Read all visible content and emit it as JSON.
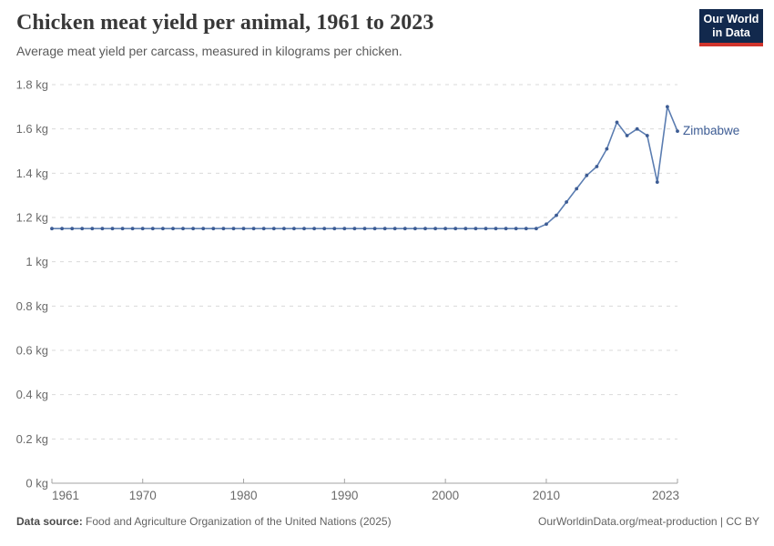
{
  "header": {
    "title": "Chicken meat yield per animal, 1961 to 2023",
    "subtitle": "Average meat yield per carcass, measured in kilograms per chicken."
  },
  "logo": {
    "line1": "Our World",
    "line2": "in Data",
    "bg_color": "#12294d",
    "bar_color": "#d0342c"
  },
  "chart_data": {
    "type": "line",
    "title": "Chicken meat yield per animal, 1961 to 2023",
    "xlabel": "",
    "ylabel": "kg",
    "ylim": [
      0,
      1.8
    ],
    "xlim": [
      1961,
      2023
    ],
    "grid": true,
    "grid_style": "dashed",
    "legend_position": "end-of-line-label",
    "y_ticks": [
      {
        "value": 1.8,
        "label": "1.8 kg"
      },
      {
        "value": 1.6,
        "label": "1.6 kg"
      },
      {
        "value": 1.4,
        "label": "1.4 kg"
      },
      {
        "value": 1.2,
        "label": "1.2 kg"
      },
      {
        "value": 1.0,
        "label": "1 kg"
      },
      {
        "value": 0.8,
        "label": "0.8 kg"
      },
      {
        "value": 0.6,
        "label": "0.6 kg"
      },
      {
        "value": 0.4,
        "label": "0.4 kg"
      },
      {
        "value": 0.2,
        "label": "0.2 kg"
      },
      {
        "value": 0.0,
        "label": "0 kg"
      }
    ],
    "x_ticks": [
      1961,
      1970,
      1980,
      1990,
      2000,
      2010,
      2023
    ],
    "series": [
      {
        "name": "Zimbabwe",
        "line_color": "#5b7db1",
        "marker_color": "#3d5c94",
        "x": [
          1961,
          1962,
          1963,
          1964,
          1965,
          1966,
          1967,
          1968,
          1969,
          1970,
          1971,
          1972,
          1973,
          1974,
          1975,
          1976,
          1977,
          1978,
          1979,
          1980,
          1981,
          1982,
          1983,
          1984,
          1985,
          1986,
          1987,
          1988,
          1989,
          1990,
          1991,
          1992,
          1993,
          1994,
          1995,
          1996,
          1997,
          1998,
          1999,
          2000,
          2001,
          2002,
          2003,
          2004,
          2005,
          2006,
          2007,
          2008,
          2009,
          2010,
          2011,
          2012,
          2013,
          2014,
          2015,
          2016,
          2017,
          2018,
          2019,
          2020,
          2021,
          2022,
          2023
        ],
        "values": [
          1.15,
          1.15,
          1.15,
          1.15,
          1.15,
          1.15,
          1.15,
          1.15,
          1.15,
          1.15,
          1.15,
          1.15,
          1.15,
          1.15,
          1.15,
          1.15,
          1.15,
          1.15,
          1.15,
          1.15,
          1.15,
          1.15,
          1.15,
          1.15,
          1.15,
          1.15,
          1.15,
          1.15,
          1.15,
          1.15,
          1.15,
          1.15,
          1.15,
          1.15,
          1.15,
          1.15,
          1.15,
          1.15,
          1.15,
          1.15,
          1.15,
          1.15,
          1.15,
          1.15,
          1.15,
          1.15,
          1.15,
          1.15,
          1.15,
          1.17,
          1.21,
          1.27,
          1.33,
          1.39,
          1.43,
          1.51,
          1.63,
          1.57,
          1.6,
          1.57,
          1.36,
          1.7,
          1.59
        ]
      }
    ]
  },
  "footer": {
    "source_label": "Data source:",
    "source_text": "Food and Agriculture Organization of the United Nations (2025)",
    "right_text": "OurWorldinData.org/meat-production | CC BY"
  }
}
